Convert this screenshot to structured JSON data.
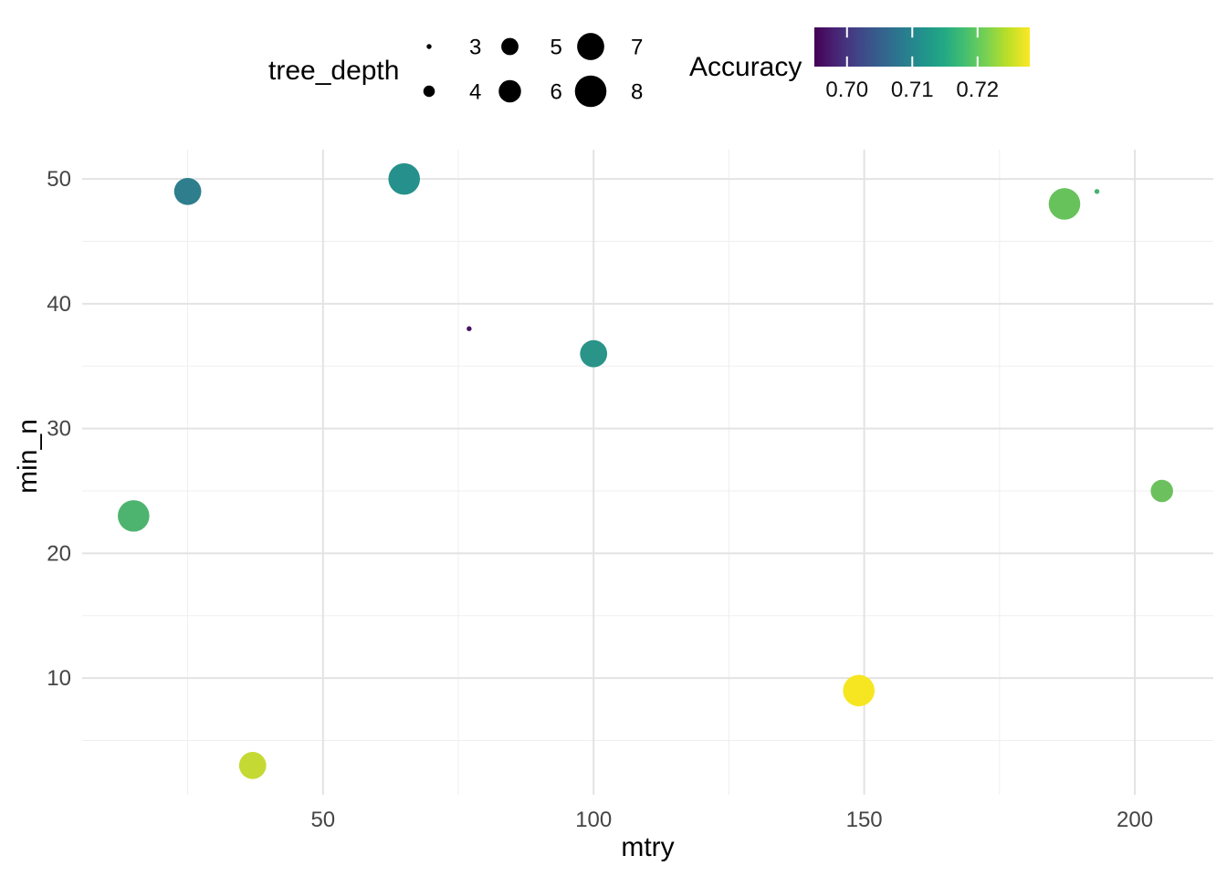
{
  "chart_data": {
    "type": "scatter",
    "title": "",
    "xlabel": "mtry",
    "ylabel": "min_n",
    "xlim": [
      5.5,
      214.5
    ],
    "ylim": [
      0.65,
      52.35
    ],
    "grid": true,
    "legend_position": "top",
    "x_major_ticks": [
      50,
      100,
      150,
      200
    ],
    "x_minor_gridlines": [
      25,
      75,
      125,
      175
    ],
    "y_major_ticks": [
      10,
      20,
      30,
      40,
      50
    ],
    "y_minor_gridlines": [
      5,
      15,
      25,
      35,
      45
    ],
    "points": [
      {
        "mtry": 25,
        "min_n": 49,
        "tree_depth": 7,
        "accuracy": 0.708,
        "color": "#2e7e8e"
      },
      {
        "mtry": 65,
        "min_n": 50,
        "tree_depth": 8,
        "accuracy": 0.711,
        "color": "#26918c"
      },
      {
        "mtry": 77,
        "min_n": 38,
        "tree_depth": 3,
        "accuracy": 0.697,
        "color": "#471063"
      },
      {
        "mtry": 100,
        "min_n": 36,
        "tree_depth": 7,
        "accuracy": 0.712,
        "color": "#2a9489"
      },
      {
        "mtry": 187,
        "min_n": 48,
        "tree_depth": 8,
        "accuracy": 0.72,
        "color": "#68c25c"
      },
      {
        "mtry": 193,
        "min_n": 49,
        "tree_depth": 3,
        "accuracy": 0.717,
        "color": "#45b36e"
      },
      {
        "mtry": 15,
        "min_n": 23,
        "tree_depth": 8,
        "accuracy": 0.718,
        "color": "#4cb46f"
      },
      {
        "mtry": 205,
        "min_n": 25,
        "tree_depth": 6,
        "accuracy": 0.72,
        "color": "#6cc15e"
      },
      {
        "mtry": 149,
        "min_n": 9,
        "tree_depth": 8,
        "accuracy": 0.726,
        "color": "#f6e621"
      },
      {
        "mtry": 37,
        "min_n": 3,
        "tree_depth": 7,
        "accuracy": 0.724,
        "color": "#c5d934"
      }
    ],
    "size_legend": {
      "title": "tree_depth",
      "values": [
        "3",
        "4",
        "5",
        "6",
        "7",
        "8"
      ]
    },
    "size_scale": {
      "domain": [
        3,
        8
      ],
      "radius_px": [
        2.7,
        17.3
      ]
    },
    "color_legend": {
      "title": "Accuracy",
      "ticks": [
        "0.70",
        "0.71",
        "0.72"
      ],
      "tick_values": [
        0.7,
        0.71,
        0.72
      ],
      "domain": [
        0.695,
        0.728
      ],
      "palette": "viridis",
      "gradient": [
        "#440154",
        "#482475",
        "#414487",
        "#355f8d",
        "#2a788e",
        "#21918c",
        "#22a884",
        "#44bf70",
        "#7ad151",
        "#bddf26",
        "#fde725"
      ]
    },
    "colors": {
      "background": "#ffffff",
      "grid_major": "#e3e3e3",
      "grid_minor": "#efefef",
      "axis_text": "#454545",
      "title_text": "#000000",
      "legend_dot": "#000000"
    }
  }
}
